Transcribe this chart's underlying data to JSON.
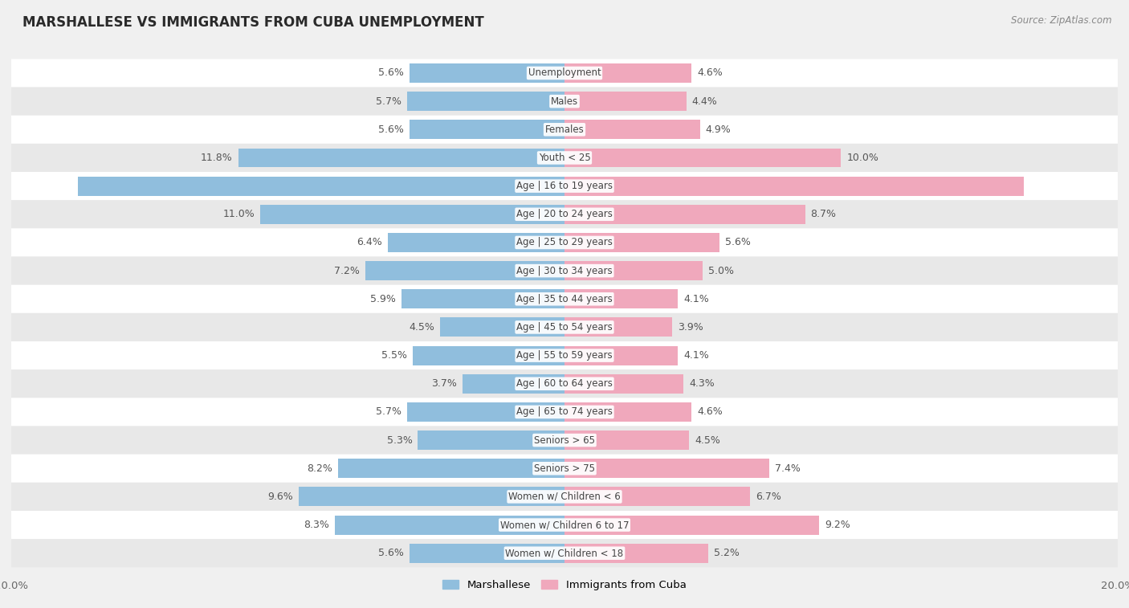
{
  "title": "MARSHALLESE VS IMMIGRANTS FROM CUBA UNEMPLOYMENT",
  "source": "Source: ZipAtlas.com",
  "categories": [
    "Unemployment",
    "Males",
    "Females",
    "Youth < 25",
    "Age | 16 to 19 years",
    "Age | 20 to 24 years",
    "Age | 25 to 29 years",
    "Age | 30 to 34 years",
    "Age | 35 to 44 years",
    "Age | 45 to 54 years",
    "Age | 55 to 59 years",
    "Age | 60 to 64 years",
    "Age | 65 to 74 years",
    "Seniors > 65",
    "Seniors > 75",
    "Women w/ Children < 6",
    "Women w/ Children 6 to 17",
    "Women w/ Children < 18"
  ],
  "marshallese": [
    5.6,
    5.7,
    5.6,
    11.8,
    17.6,
    11.0,
    6.4,
    7.2,
    5.9,
    4.5,
    5.5,
    3.7,
    5.7,
    5.3,
    8.2,
    9.6,
    8.3,
    5.6
  ],
  "cuba": [
    4.6,
    4.4,
    4.9,
    10.0,
    16.6,
    8.7,
    5.6,
    5.0,
    4.1,
    3.9,
    4.1,
    4.3,
    4.6,
    4.5,
    7.4,
    6.7,
    9.2,
    5.2
  ],
  "marshallese_color": "#90bedd",
  "cuba_color": "#f0a8bc",
  "marshallese_highlight_color": "#5b9dc4",
  "cuba_highlight_color": "#e06080",
  "max_val": 20.0,
  "bar_height": 0.68,
  "bg_color": "#f0f0f0",
  "row_colors": [
    "#ffffff",
    "#e8e8e8"
  ],
  "label_color": "#555555",
  "center_label_color": "#444444",
  "axis_label_color": "#666666"
}
